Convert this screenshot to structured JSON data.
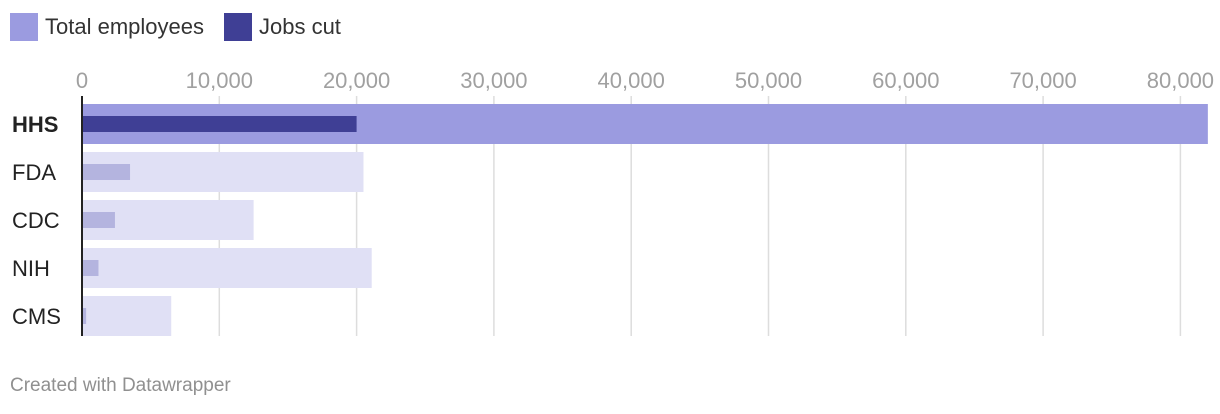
{
  "legend": [
    {
      "label": "Total employees",
      "color": "#9b9be0"
    },
    {
      "label": "Jobs cut",
      "color": "#3f3f95"
    }
  ],
  "footer": {
    "credit": "Created with Datawrapper"
  },
  "chart_data": {
    "type": "bar",
    "orientation": "horizontal",
    "categories": [
      "HHS",
      "FDA",
      "CDC",
      "NIH",
      "CMS"
    ],
    "highlighted_category": "HHS",
    "series": [
      {
        "name": "Total employees",
        "values": [
          82000,
          20500,
          12500,
          21100,
          6500
        ]
      },
      {
        "name": "Jobs cut",
        "values": [
          20000,
          3500,
          2400,
          1200,
          300
        ]
      }
    ],
    "x_ticks": [
      0,
      10000,
      20000,
      30000,
      40000,
      50000,
      60000,
      70000,
      80000
    ],
    "x_tick_labels": [
      "0",
      "10,000",
      "20,000",
      "30,000",
      "40,000",
      "50,000",
      "60,000",
      "70,000",
      "80,000"
    ],
    "xlim": [
      0,
      82000
    ],
    "grid": true,
    "legend_position": "top-left",
    "colors": {
      "total_highlight": "#9b9be0",
      "total_muted": "#e0e0f5",
      "cut_highlight": "#3f3f95",
      "cut_muted": "#b4b4df",
      "grid": "#dddddd",
      "tick_label": "#a0a0a0",
      "category_label": "#222222",
      "axis": "#222222"
    }
  }
}
